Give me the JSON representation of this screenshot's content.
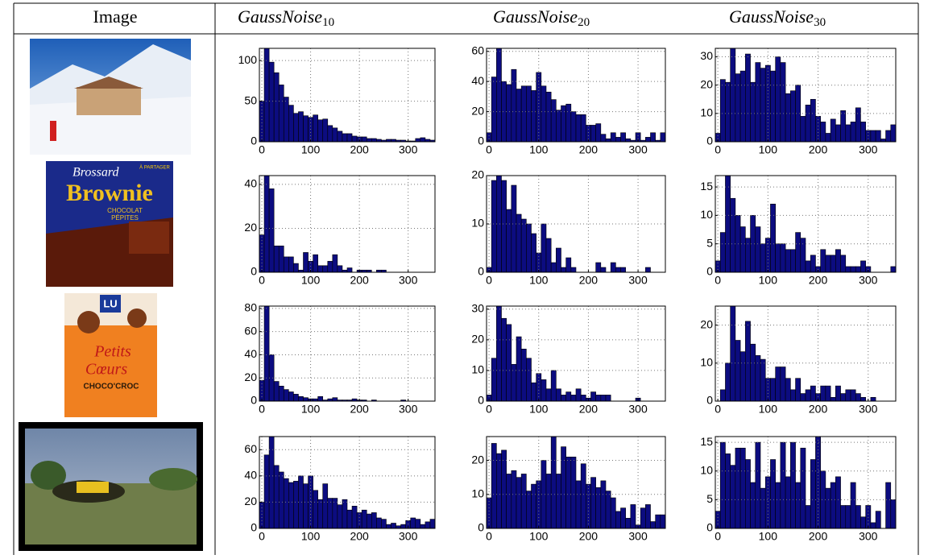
{
  "header": [
    {
      "text": "Image"
    },
    {
      "base": "GaussNoise",
      "sub": "10"
    },
    {
      "base": "GaussNoise",
      "sub": "20"
    },
    {
      "base": "GaussNoise",
      "sub": "30"
    }
  ],
  "histogram": {
    "bins": [
      -5,
      5,
      15,
      25,
      35,
      45,
      55,
      65,
      75,
      85,
      95,
      105,
      115,
      125,
      135,
      145,
      155,
      165,
      175,
      185,
      195,
      205,
      215,
      225,
      235,
      245,
      255,
      265,
      275,
      285,
      295,
      305,
      315,
      325,
      335,
      345,
      355
    ],
    "xlim": [
      -5,
      355
    ],
    "xticks": [
      0,
      100,
      200,
      300
    ],
    "color": "#0c0c80",
    "grid": true
  },
  "rows": [
    {
      "charts": [
        {
          "type": "histogram",
          "ylim": [
            0,
            115
          ],
          "yticks": [
            0,
            50,
            100
          ],
          "values": [
            50,
            115,
            98,
            85,
            70,
            55,
            45,
            35,
            37,
            32,
            30,
            33,
            27,
            28,
            20,
            17,
            13,
            10,
            10,
            7,
            6,
            6,
            4,
            4,
            3,
            2,
            3,
            3,
            2,
            2,
            1,
            1,
            4,
            5,
            3,
            2
          ]
        },
        {
          "type": "histogram",
          "ylim": [
            0,
            62
          ],
          "yticks": [
            0,
            20,
            40,
            60
          ],
          "values": [
            6,
            43,
            62,
            40,
            38,
            48,
            35,
            37,
            37,
            34,
            46,
            37,
            33,
            28,
            21,
            24,
            25,
            20,
            18,
            18,
            11,
            11,
            12,
            5,
            2,
            6,
            3,
            6,
            2,
            1,
            6,
            1,
            3,
            6,
            1,
            6
          ]
        },
        {
          "type": "histogram",
          "ylim": [
            0,
            33
          ],
          "yticks": [
            0,
            10,
            20,
            30
          ],
          "values": [
            3,
            22,
            21,
            33,
            24,
            25,
            31,
            21,
            28,
            26,
            27,
            25,
            30,
            28,
            17,
            18,
            20,
            9,
            13,
            15,
            9,
            7,
            3,
            8,
            6,
            11,
            6,
            7,
            12,
            7,
            4,
            4,
            4,
            1,
            4,
            6
          ]
        }
      ]
    },
    {
      "image_text": [
        "Brossard",
        "Brownie",
        "CHOCOLAT",
        "PÉPITES",
        "À PARTAGER"
      ],
      "charts": [
        {
          "type": "histogram",
          "ylim": [
            0,
            44
          ],
          "yticks": [
            0,
            20,
            40
          ],
          "values": [
            17,
            44,
            38,
            12,
            12,
            7,
            7,
            4,
            1,
            9,
            5,
            8,
            3,
            3,
            5,
            8,
            3,
            1,
            2,
            0,
            1,
            1,
            1,
            0,
            1,
            1,
            0,
            0,
            0,
            0,
            0,
            0,
            0,
            0,
            0,
            0
          ]
        },
        {
          "type": "histogram",
          "ylim": [
            0,
            20
          ],
          "yticks": [
            0,
            10,
            20
          ],
          "values": [
            1,
            19,
            20,
            19,
            13,
            18,
            12,
            11,
            10,
            8,
            4,
            10,
            7,
            2,
            5,
            1,
            3,
            1,
            0,
            0,
            0,
            0,
            2,
            1,
            0,
            2,
            1,
            1,
            0,
            0,
            0,
            0,
            1,
            0,
            0,
            0
          ]
        },
        {
          "type": "histogram",
          "ylim": [
            0,
            17
          ],
          "yticks": [
            0,
            5,
            10,
            15
          ],
          "values": [
            2,
            7,
            17,
            13,
            10,
            8,
            6,
            10,
            8,
            5,
            6,
            12,
            5,
            5,
            4,
            4,
            7,
            6,
            2,
            3,
            1,
            4,
            3,
            3,
            4,
            3,
            1,
            1,
            1,
            2,
            1,
            0,
            0,
            0,
            0,
            1
          ]
        }
      ]
    },
    {
      "image_text": [
        "LU",
        "Petits",
        "Cœurs",
        "CHOCO'CROC"
      ],
      "charts": [
        {
          "type": "histogram",
          "ylim": [
            0,
            82
          ],
          "yticks": [
            0,
            20,
            40,
            60,
            80
          ],
          "values": [
            18,
            82,
            40,
            17,
            13,
            10,
            8,
            6,
            4,
            3,
            2,
            2,
            4,
            1,
            2,
            3,
            1,
            1,
            1,
            2,
            1,
            1,
            0,
            1,
            0,
            0,
            0,
            0,
            0,
            1,
            0,
            0,
            0,
            0,
            0,
            0
          ]
        },
        {
          "type": "histogram",
          "ylim": [
            0,
            31
          ],
          "yticks": [
            0,
            10,
            20,
            30
          ],
          "values": [
            2,
            14,
            31,
            27,
            25,
            12,
            21,
            17,
            14,
            6,
            9,
            7,
            4,
            10,
            4,
            2,
            3,
            2,
            4,
            2,
            1,
            3,
            2,
            2,
            2,
            0,
            0,
            0,
            0,
            0,
            1,
            0,
            0,
            0,
            0,
            0
          ]
        },
        {
          "type": "histogram",
          "ylim": [
            0,
            25
          ],
          "yticks": [
            0,
            10,
            20
          ],
          "values": [
            0,
            3,
            10,
            25,
            16,
            13,
            21,
            15,
            12,
            11,
            6,
            6,
            9,
            9,
            6,
            3,
            6,
            2,
            3,
            4,
            2,
            4,
            4,
            1,
            4,
            2,
            3,
            3,
            2,
            1,
            0,
            1,
            0,
            0,
            0,
            0
          ]
        }
      ]
    },
    {
      "charts": [
        {
          "type": "histogram",
          "ylim": [
            0,
            70
          ],
          "yticks": [
            0,
            20,
            40,
            60
          ],
          "values": [
            20,
            56,
            70,
            48,
            43,
            38,
            35,
            36,
            40,
            34,
            40,
            29,
            22,
            34,
            23,
            23,
            18,
            22,
            14,
            17,
            12,
            14,
            11,
            12,
            8,
            7,
            3,
            4,
            2,
            3,
            6,
            8,
            7,
            3,
            5,
            7
          ]
        },
        {
          "type": "histogram",
          "ylim": [
            0,
            27
          ],
          "yticks": [
            0,
            10,
            20
          ],
          "values": [
            9,
            25,
            22,
            23,
            16,
            17,
            15,
            16,
            11,
            13,
            14,
            20,
            16,
            27,
            16,
            24,
            21,
            21,
            14,
            19,
            13,
            15,
            12,
            14,
            11,
            9,
            5,
            6,
            3,
            7,
            1,
            6,
            7,
            2,
            4,
            4
          ]
        },
        {
          "type": "histogram",
          "ylim": [
            0,
            16
          ],
          "yticks": [
            0,
            5,
            10,
            15
          ],
          "values": [
            3,
            15,
            13,
            11,
            14,
            14,
            12,
            8,
            15,
            7,
            9,
            12,
            8,
            15,
            9,
            15,
            8,
            14,
            4,
            12,
            16,
            10,
            7,
            8,
            9,
            4,
            4,
            8,
            4,
            2,
            4,
            1,
            3,
            0,
            8,
            5
          ]
        }
      ]
    }
  ]
}
